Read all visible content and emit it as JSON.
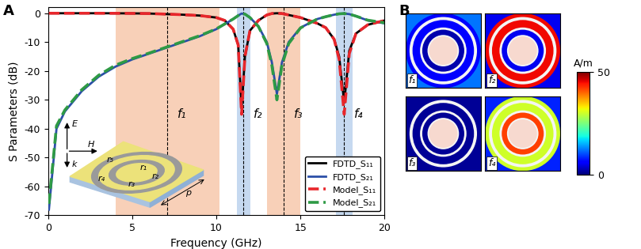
{
  "chart_data": [
    {
      "type": "line",
      "title": "A",
      "x_label": "Frequency (GHz)",
      "y_label": "S Parameters (dB)",
      "x": [
        0.05,
        0.5,
        1,
        2,
        3,
        4,
        5,
        6,
        7,
        8,
        9,
        10,
        10.5,
        11,
        11.3,
        11.5,
        11.7,
        12,
        12.5,
        13,
        13.3,
        13.6,
        13.9,
        14.3,
        15,
        16,
        16.5,
        17,
        17.3,
        17.6,
        17.9,
        18.3,
        19,
        20
      ],
      "series": [
        {
          "name": "FDTD_S₁₁",
          "color": "#000000",
          "line_style": "solid",
          "values": [
            0,
            0,
            0,
            0,
            0,
            -0.02,
            -0.05,
            -0.1,
            -0.3,
            -0.5,
            -0.8,
            -1.5,
            -2.5,
            -5.5,
            -11,
            -33,
            -15,
            -6,
            -2.5,
            -0.6,
            -0.1,
            0,
            -0.1,
            -0.6,
            -1.5,
            -3.5,
            -5,
            -9,
            -15,
            -31,
            -13,
            -7,
            -4,
            -2.5
          ]
        },
        {
          "name": "FDTD_S₂₁",
          "color": "#2b4fa8",
          "line_style": "solid",
          "values": [
            -68,
            -40,
            -34,
            -27,
            -22,
            -18.5,
            -16,
            -14,
            -12,
            -10,
            -8,
            -5.5,
            -3.8,
            -2,
            -0.8,
            -0.1,
            -0.3,
            -1.5,
            -4.5,
            -10,
            -17,
            -28,
            -17,
            -10,
            -5,
            -2,
            -1.2,
            -0.5,
            -0.2,
            -0.1,
            -0.3,
            -1,
            -2.5,
            -3.5
          ]
        },
        {
          "name": "Model_S₁₁",
          "color": "#e8262b",
          "line_style": "dashed",
          "values": [
            0,
            0,
            0,
            0,
            0,
            -0.02,
            -0.05,
            -0.1,
            -0.3,
            -0.5,
            -0.8,
            -1.5,
            -2.5,
            -5.5,
            -11,
            -35,
            -15,
            -6,
            -2.5,
            -0.6,
            -0.1,
            0,
            -0.1,
            -0.6,
            -1.5,
            -3.5,
            -5,
            -9,
            -16,
            -35,
            -14,
            -7,
            -4,
            -2.5
          ]
        },
        {
          "name": "Model_S₂₁",
          "color": "#2e9a45",
          "line_style": "dashed",
          "values": [
            -66,
            -39,
            -33.5,
            -26.5,
            -21.5,
            -18,
            -15.7,
            -13.8,
            -11.8,
            -9.8,
            -7.8,
            -5.4,
            -3.7,
            -2,
            -0.8,
            -0.1,
            -0.3,
            -1.5,
            -4.6,
            -10.5,
            -18,
            -30,
            -18,
            -10.5,
            -5.1,
            -2,
            -1.2,
            -0.5,
            -0.2,
            -0.1,
            -0.3,
            -1,
            -2.4,
            -3.3
          ]
        }
      ],
      "bands": [
        {
          "label": "f₁",
          "x": 7.1,
          "range": [
            4,
            10.2
          ],
          "color": "#f8d0b8"
        },
        {
          "label": "f₂",
          "x": 11.6,
          "range": [
            11.2,
            12.0
          ],
          "color": "#c6d9f0"
        },
        {
          "label": "f₃",
          "x": 14.0,
          "range": [
            13.0,
            15.0
          ],
          "color": "#f8d0b8"
        },
        {
          "label": "f₄",
          "x": 17.6,
          "range": [
            17.1,
            18.1
          ],
          "color": "#c6d9f0"
        }
      ],
      "inset": {
        "labels": [
          "r₁",
          "r₂",
          "r₃",
          "r₄",
          "r₅",
          "p"
        ],
        "vectors": [
          "E",
          "H",
          "k"
        ]
      },
      "xlim": [
        0,
        20
      ],
      "ylim": [
        -70,
        2
      ],
      "xticks": [
        0,
        5,
        10,
        15,
        20
      ],
      "yticks": [
        -70,
        -60,
        -50,
        -40,
        -30,
        -20,
        -10,
        0
      ],
      "legend": "lower right"
    },
    {
      "type": "field_map",
      "title": "B",
      "panels": [
        {
          "label": "f₁",
          "values": [
            12,
            6,
            2
          ]
        },
        {
          "label": "f₂",
          "values": [
            5,
            45,
            5
          ]
        },
        {
          "label": "f₃",
          "values": [
            1,
            1,
            1
          ]
        },
        {
          "label": "f₄",
          "values": [
            8,
            30,
            42
          ]
        }
      ],
      "colorbar": {
        "label": "A/m",
        "range": [
          0,
          50
        ],
        "ticks": [
          0,
          50
        ]
      }
    }
  ]
}
